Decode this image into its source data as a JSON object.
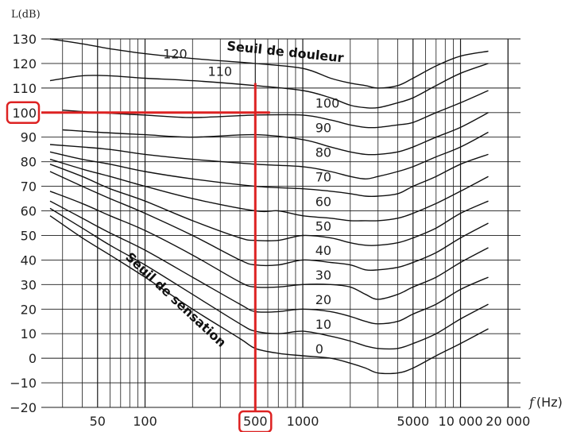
{
  "chart_data": {
    "type": "line",
    "ylabel": "L(dB)",
    "xlabel": {
      "var": "f",
      "unit": "(Hz)"
    },
    "xscale": "log",
    "xlim": [
      22,
      24000
    ],
    "ylim": [
      -20,
      130
    ],
    "grid": true,
    "y_ticks": [
      "130",
      "120",
      "110",
      "100",
      "90",
      "80",
      "70",
      "60",
      "50",
      "40",
      "30",
      "20",
      "10",
      "0",
      "−10",
      "−20"
    ],
    "y_tick_values": [
      130,
      120,
      110,
      100,
      90,
      80,
      70,
      60,
      50,
      40,
      30,
      20,
      10,
      0,
      -10,
      -20
    ],
    "x_ticks": [
      {
        "label": "50",
        "value": 50
      },
      {
        "label": "100",
        "value": 100
      },
      {
        "label": "500",
        "value": 500
      },
      {
        "label": "1000",
        "value": 1000
      },
      {
        "label": "5000",
        "value": 5000
      },
      {
        "label": "10 000",
        "value": 10000
      },
      {
        "label": "20 000",
        "value": 20000
      }
    ],
    "annotations": {
      "pain_threshold": "Seuil de douleur",
      "hearing_threshold": "Seuil de sensation"
    },
    "highlight": {
      "x": 500,
      "y": 100,
      "x_label": "500",
      "y_label": "100",
      "color": "#dd2222"
    },
    "series": [
      {
        "name": "120",
        "points": [
          [
            25,
            130
          ],
          [
            40,
            128
          ],
          [
            60,
            126
          ],
          [
            100,
            124
          ],
          [
            200,
            122
          ],
          [
            500,
            120
          ],
          [
            1000,
            118
          ],
          [
            1500,
            114
          ],
          [
            2000,
            112
          ],
          [
            2500,
            111
          ],
          [
            3000,
            110
          ],
          [
            4000,
            111
          ],
          [
            5000,
            114
          ],
          [
            7000,
            119
          ],
          [
            10000,
            123
          ],
          [
            15000,
            125
          ]
        ]
      },
      {
        "name": "110",
        "points": [
          [
            25,
            113
          ],
          [
            40,
            115
          ],
          [
            60,
            115
          ],
          [
            100,
            114
          ],
          [
            200,
            113
          ],
          [
            500,
            111
          ],
          [
            1000,
            109
          ],
          [
            1500,
            106
          ],
          [
            2000,
            103
          ],
          [
            2500,
            102
          ],
          [
            3000,
            102
          ],
          [
            4000,
            104
          ],
          [
            5000,
            106
          ],
          [
            7000,
            111
          ],
          [
            10000,
            116
          ],
          [
            15000,
            120
          ]
        ]
      },
      {
        "name": "100",
        "points": [
          [
            30,
            101
          ],
          [
            50,
            100
          ],
          [
            100,
            99
          ],
          [
            200,
            98
          ],
          [
            500,
            99
          ],
          [
            1000,
            99
          ],
          [
            1500,
            97
          ],
          [
            2000,
            95
          ],
          [
            2500,
            94
          ],
          [
            3000,
            94
          ],
          [
            4000,
            95
          ],
          [
            5000,
            96
          ],
          [
            7000,
            100
          ],
          [
            10000,
            104
          ],
          [
            15000,
            109
          ]
        ]
      },
      {
        "name": "90",
        "points": [
          [
            30,
            93
          ],
          [
            50,
            92
          ],
          [
            100,
            91
          ],
          [
            200,
            90
          ],
          [
            500,
            91
          ],
          [
            1000,
            89
          ],
          [
            1500,
            86
          ],
          [
            2000,
            84
          ],
          [
            2500,
            83
          ],
          [
            3000,
            83
          ],
          [
            4000,
            84
          ],
          [
            5000,
            86
          ],
          [
            7000,
            90
          ],
          [
            10000,
            94
          ],
          [
            15000,
            100
          ]
        ]
      },
      {
        "name": "80",
        "points": [
          [
            25,
            87
          ],
          [
            40,
            86
          ],
          [
            60,
            85
          ],
          [
            100,
            83
          ],
          [
            200,
            81
          ],
          [
            500,
            79
          ],
          [
            1000,
            78
          ],
          [
            1500,
            76
          ],
          [
            2000,
            74
          ],
          [
            2500,
            73
          ],
          [
            3000,
            74
          ],
          [
            4000,
            76
          ],
          [
            5000,
            78
          ],
          [
            7000,
            82
          ],
          [
            10000,
            86
          ],
          [
            15000,
            92
          ]
        ]
      },
      {
        "name": "70",
        "points": [
          [
            25,
            84
          ],
          [
            40,
            81
          ],
          [
            60,
            79
          ],
          [
            100,
            76
          ],
          [
            200,
            73
          ],
          [
            500,
            70
          ],
          [
            1000,
            69
          ],
          [
            1500,
            68
          ],
          [
            2000,
            67
          ],
          [
            2500,
            66
          ],
          [
            3000,
            66
          ],
          [
            4000,
            67
          ],
          [
            5000,
            70
          ],
          [
            7000,
            74
          ],
          [
            10000,
            79
          ],
          [
            15000,
            83
          ]
        ]
      },
      {
        "name": "60",
        "points": [
          [
            25,
            81
          ],
          [
            40,
            77
          ],
          [
            60,
            74
          ],
          [
            100,
            70
          ],
          [
            200,
            65
          ],
          [
            500,
            60
          ],
          [
            700,
            60
          ],
          [
            1000,
            58
          ],
          [
            1500,
            57
          ],
          [
            2000,
            56
          ],
          [
            2500,
            56
          ],
          [
            3000,
            56
          ],
          [
            4000,
            57
          ],
          [
            5000,
            59
          ],
          [
            7000,
            63
          ],
          [
            10000,
            68
          ],
          [
            15000,
            74
          ]
        ]
      },
      {
        "name": "50",
        "points": [
          [
            25,
            79
          ],
          [
            40,
            74
          ],
          [
            60,
            69
          ],
          [
            100,
            64
          ],
          [
            200,
            56
          ],
          [
            400,
            49
          ],
          [
            500,
            48
          ],
          [
            700,
            48
          ],
          [
            1000,
            50
          ],
          [
            1500,
            49
          ],
          [
            2000,
            47
          ],
          [
            2500,
            46
          ],
          [
            3000,
            46
          ],
          [
            4000,
            47
          ],
          [
            5000,
            49
          ],
          [
            7000,
            53
          ],
          [
            10000,
            59
          ],
          [
            15000,
            64
          ]
        ]
      },
      {
        "name": "40",
        "points": [
          [
            25,
            76
          ],
          [
            40,
            70
          ],
          [
            60,
            65
          ],
          [
            100,
            59
          ],
          [
            200,
            50
          ],
          [
            400,
            40
          ],
          [
            500,
            38
          ],
          [
            700,
            38
          ],
          [
            1000,
            40
          ],
          [
            1500,
            39
          ],
          [
            2000,
            38
          ],
          [
            2500,
            36
          ],
          [
            3000,
            36
          ],
          [
            4000,
            37
          ],
          [
            5000,
            39
          ],
          [
            7000,
            43
          ],
          [
            10000,
            49
          ],
          [
            15000,
            55
          ]
        ]
      },
      {
        "name": "30",
        "points": [
          [
            25,
            68
          ],
          [
            40,
            63
          ],
          [
            60,
            58
          ],
          [
            100,
            52
          ],
          [
            200,
            42
          ],
          [
            400,
            31
          ],
          [
            500,
            29
          ],
          [
            700,
            29
          ],
          [
            1000,
            30
          ],
          [
            1500,
            30
          ],
          [
            2000,
            29
          ],
          [
            2500,
            26
          ],
          [
            3000,
            24
          ],
          [
            4000,
            26
          ],
          [
            5000,
            29
          ],
          [
            7000,
            33
          ],
          [
            10000,
            39
          ],
          [
            15000,
            45
          ]
        ]
      },
      {
        "name": "20",
        "points": [
          [
            25,
            64
          ],
          [
            40,
            57
          ],
          [
            60,
            51
          ],
          [
            100,
            44
          ],
          [
            200,
            33
          ],
          [
            400,
            22
          ],
          [
            500,
            19
          ],
          [
            700,
            19
          ],
          [
            1000,
            20
          ],
          [
            1500,
            19
          ],
          [
            2000,
            17
          ],
          [
            2500,
            15
          ],
          [
            3000,
            14
          ],
          [
            4000,
            15
          ],
          [
            5000,
            18
          ],
          [
            7000,
            22
          ],
          [
            10000,
            28
          ],
          [
            15000,
            33
          ]
        ]
      },
      {
        "name": "10",
        "points": [
          [
            25,
            61
          ],
          [
            40,
            53
          ],
          [
            60,
            46
          ],
          [
            100,
            38
          ],
          [
            200,
            26
          ],
          [
            400,
            14
          ],
          [
            500,
            11
          ],
          [
            700,
            10
          ],
          [
            1000,
            11
          ],
          [
            1500,
            9
          ],
          [
            2000,
            7
          ],
          [
            2500,
            5
          ],
          [
            3000,
            4
          ],
          [
            4000,
            4
          ],
          [
            5000,
            6
          ],
          [
            7000,
            10
          ],
          [
            10000,
            16
          ],
          [
            15000,
            22
          ]
        ]
      },
      {
        "name": "0",
        "points": [
          [
            25,
            58
          ],
          [
            40,
            49
          ],
          [
            60,
            42
          ],
          [
            100,
            33
          ],
          [
            200,
            20
          ],
          [
            400,
            8
          ],
          [
            500,
            4
          ],
          [
            700,
            2
          ],
          [
            1000,
            1
          ],
          [
            1500,
            0
          ],
          [
            2000,
            -2
          ],
          [
            2500,
            -4
          ],
          [
            3000,
            -6
          ],
          [
            4000,
            -6
          ],
          [
            5000,
            -4
          ],
          [
            7000,
            1
          ],
          [
            10000,
            6
          ],
          [
            15000,
            12
          ]
        ]
      }
    ],
    "curve_label_positions": [
      {
        "name": "120",
        "x": 130,
        "y": 122
      },
      {
        "name": "110",
        "x": 250,
        "y": 115
      },
      {
        "name": "100",
        "x": 1200,
        "y": 102
      },
      {
        "name": "90",
        "x": 1200,
        "y": 92
      },
      {
        "name": "80",
        "x": 1200,
        "y": 82
      },
      {
        "name": "70",
        "x": 1200,
        "y": 72
      },
      {
        "name": "60",
        "x": 1200,
        "y": 62
      },
      {
        "name": "50",
        "x": 1200,
        "y": 52
      },
      {
        "name": "40",
        "x": 1200,
        "y": 42
      },
      {
        "name": "30",
        "x": 1200,
        "y": 32
      },
      {
        "name": "20",
        "x": 1200,
        "y": 22
      },
      {
        "name": "10",
        "x": 1200,
        "y": 12
      },
      {
        "name": "0",
        "x": 1200,
        "y": 2
      }
    ]
  }
}
